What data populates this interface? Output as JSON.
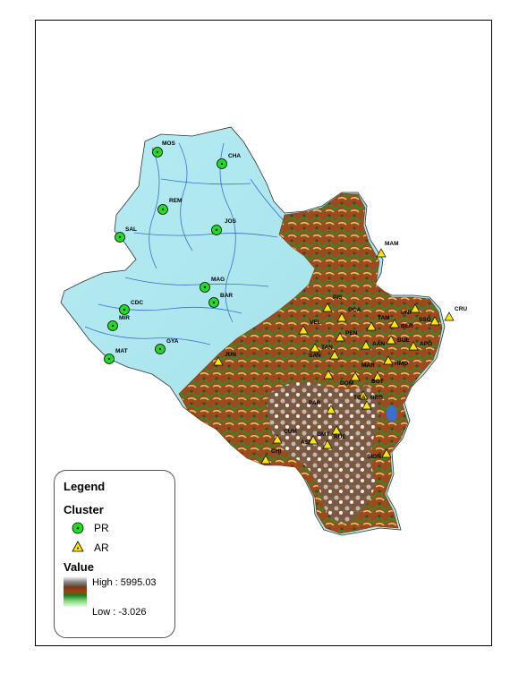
{
  "legend": {
    "title": "Legend",
    "cluster_title": "Cluster",
    "pr_label": "PR",
    "ar_label": "AR",
    "value_title": "Value",
    "high_label": "High : 5995.03",
    "low_label": "Low : -3.026"
  },
  "colors": {
    "lowland": "#a9e6ee",
    "river": "#3a6fd1",
    "pr_marker": "#22dd22",
    "ar_marker": "#ffe600"
  },
  "pr_stations": [
    "MOS",
    "CHA",
    "REM",
    "JOS",
    "SAL",
    "MAG",
    "BAR",
    "CDC",
    "MIR",
    "GYA",
    "MAT"
  ],
  "ar_stations": [
    "MAM",
    "CRU",
    "UNI",
    "PIS",
    "OCA",
    "VEL",
    "TAM",
    "BER",
    "SSO",
    "PEN",
    "APO",
    "TAN",
    "AAN",
    "BUE",
    "SAN",
    "MAR",
    "HMO",
    "JUN",
    "DOM",
    "BOT",
    "TGA",
    "RBB",
    "PAR",
    "CUM",
    "CHI",
    "ASI",
    "GMT",
    "RUE",
    "SION"
  ]
}
